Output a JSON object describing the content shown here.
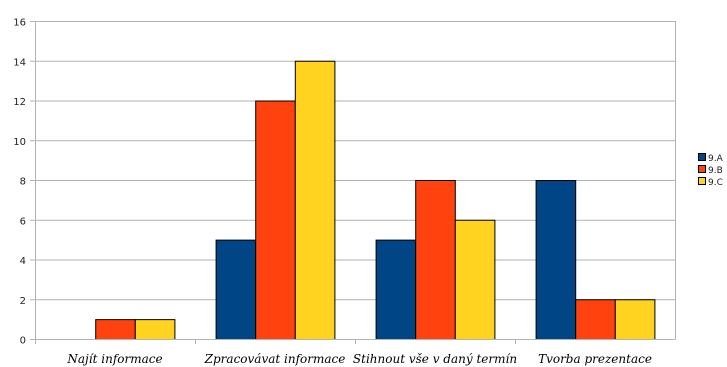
{
  "chart_data": {
    "type": "bar",
    "categories": [
      "Najít informace",
      "Zpracovávat informace",
      "Stihnout vše v daný termín",
      "Tvorba prezentace"
    ],
    "series": [
      {
        "name": "9.A",
        "values": [
          0,
          5,
          5,
          8
        ],
        "color": "#004586"
      },
      {
        "name": "9.B",
        "values": [
          1,
          12,
          8,
          2
        ],
        "color": "#ff420e"
      },
      {
        "name": "9.C",
        "values": [
          1,
          14,
          6,
          2
        ],
        "color": "#ffd320"
      }
    ],
    "title": "",
    "xlabel": "",
    "ylabel": "",
    "ylim": [
      0,
      16
    ],
    "yticks": [
      "0",
      "2",
      "4",
      "6",
      "8",
      "10",
      "12",
      "14",
      "16"
    ],
    "grid": true,
    "legend": "right"
  }
}
